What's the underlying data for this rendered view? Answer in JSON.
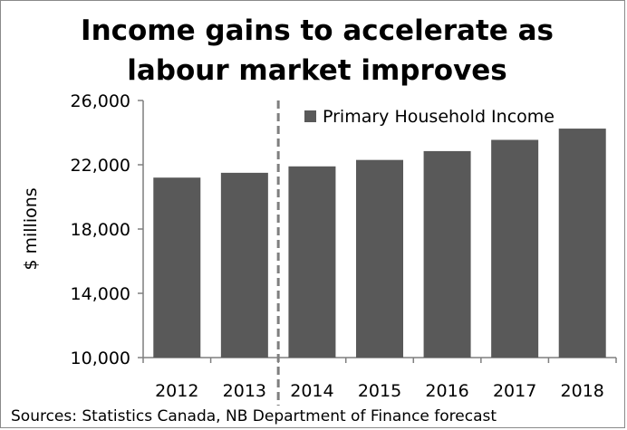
{
  "chart_data": {
    "type": "bar",
    "title_lines": [
      "Income gains to accelerate as",
      "labour market improves"
    ],
    "ylabel": "$ millions",
    "xlabel": "",
    "categories": [
      "2012",
      "2013",
      "2014",
      "2015",
      "2016",
      "2017",
      "2018"
    ],
    "series": [
      {
        "name": "Primary Household Income",
        "color": "#595959",
        "values": [
          21200,
          21500,
          21900,
          22300,
          22850,
          23550,
          24250
        ]
      }
    ],
    "ylim": [
      10000,
      26000
    ],
    "yticks": [
      10000,
      14000,
      18000,
      22000,
      26000
    ],
    "ytick_labels": [
      "10,000",
      "14,000",
      "18,000",
      "22,000",
      "26,000"
    ],
    "forecast_divider_after": "2013",
    "legend_position": "top-right",
    "grid": false,
    "source": "Sources: Statistics Canada, NB Department of Finance forecast"
  }
}
